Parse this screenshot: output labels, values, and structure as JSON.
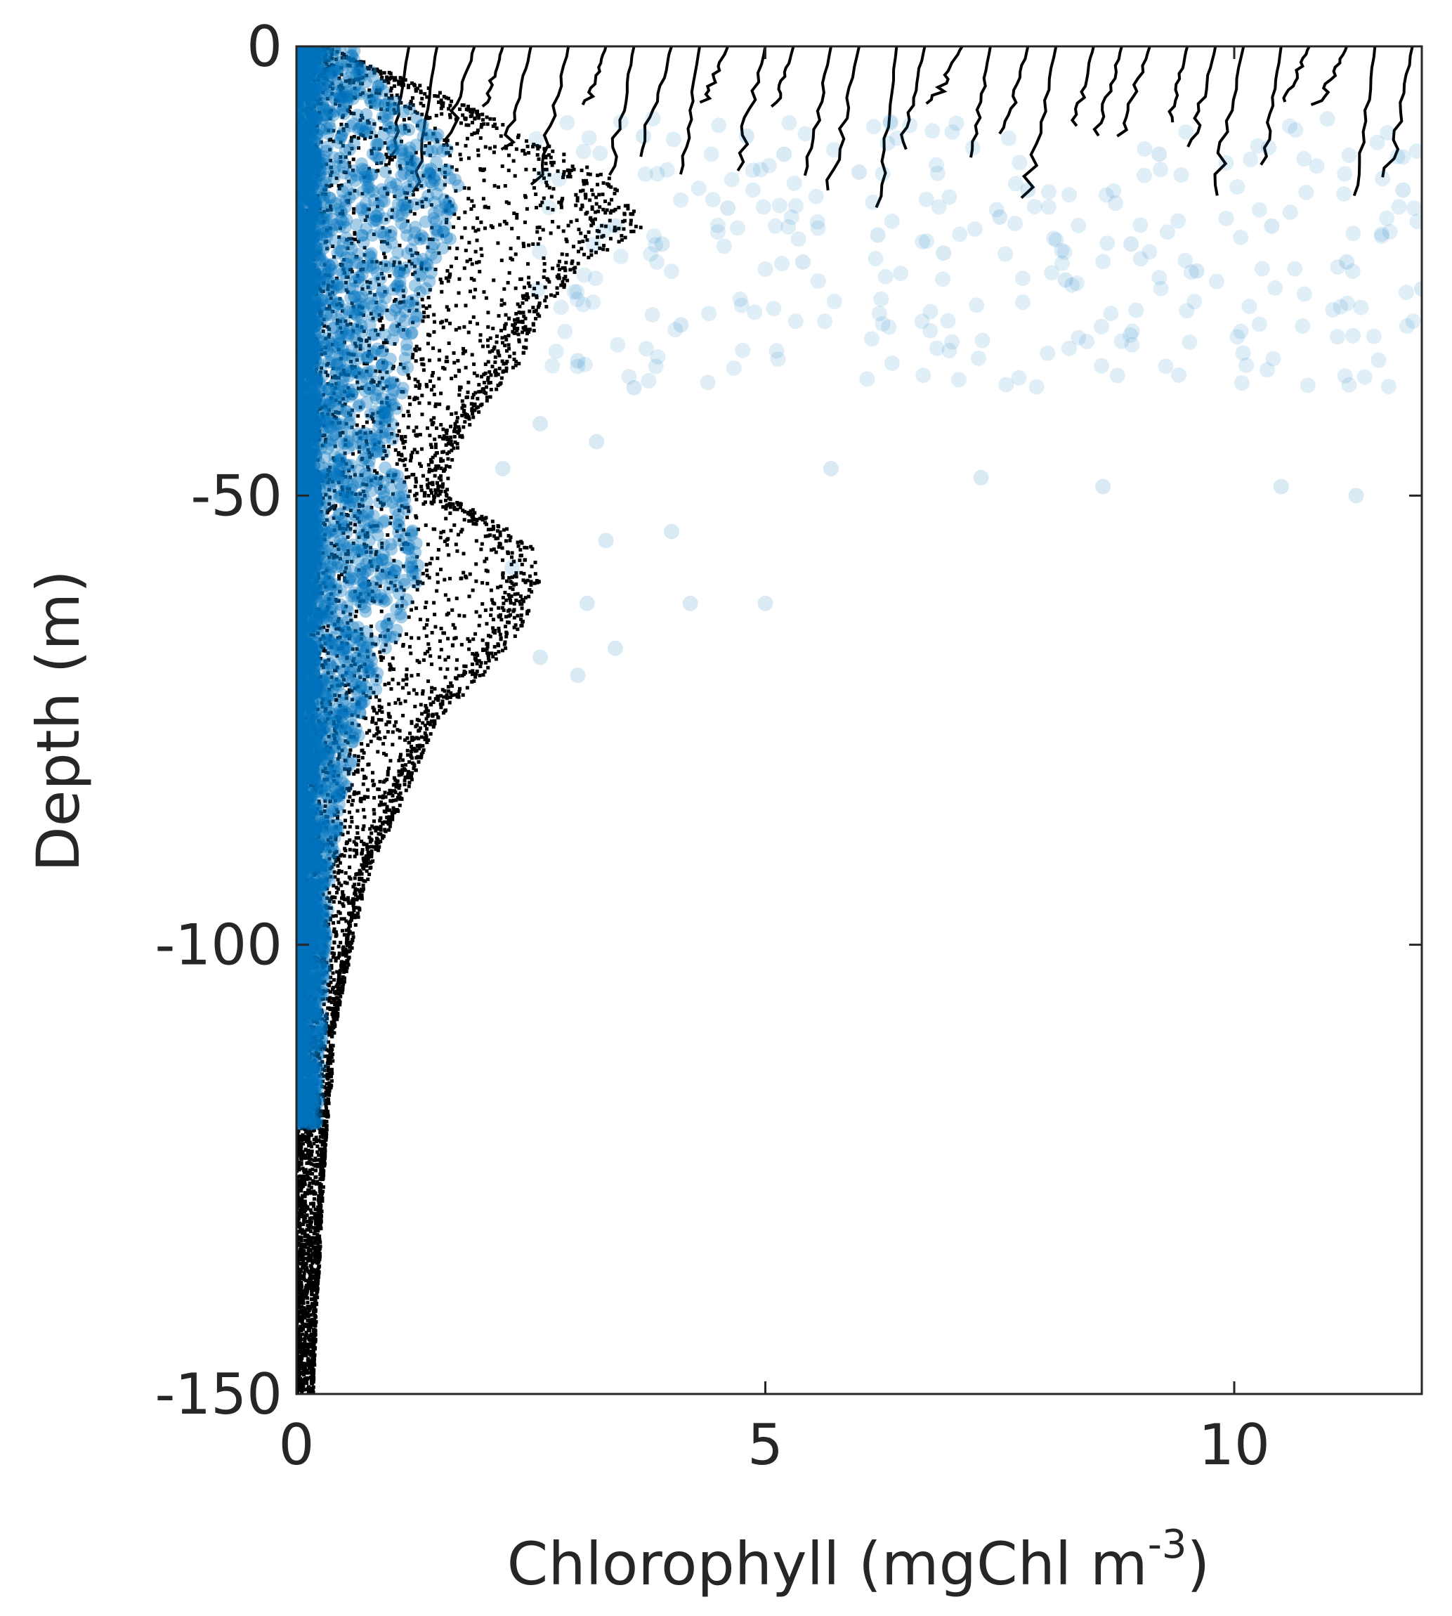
{
  "chart_data": {
    "type": "scatter",
    "xlabel": "Chlorophyll (mgChl m",
    "xlabel_superscript": "-3",
    "xlabel_close": ")",
    "ylabel": "Depth (m)",
    "xlim": [
      0,
      12
    ],
    "ylim": [
      -150,
      0
    ],
    "x_ticks": [
      0,
      5,
      10
    ],
    "y_ticks": [
      0,
      -50,
      -100,
      -150
    ],
    "x_tick_labels": [
      "0",
      "5",
      "10"
    ],
    "y_tick_labels": [
      "0",
      "-50",
      "-100",
      "-150"
    ],
    "grid": false,
    "legend": "none",
    "colors": {
      "modeled": "#000000",
      "observed": "#0072BD",
      "axis": "#262626"
    },
    "series": [
      {
        "marker": "black dots",
        "envelope_x_max_at_depth": [
          [
            0,
            0.3
          ],
          [
            -5,
            1.5
          ],
          [
            -10,
            2.5
          ],
          [
            -15,
            3.4
          ],
          [
            -20,
            3.7
          ],
          [
            -25,
            3.0
          ],
          [
            -30,
            2.6
          ],
          [
            -35,
            2.4
          ],
          [
            -40,
            2.0
          ],
          [
            -45,
            1.7
          ],
          [
            -50,
            1.6
          ],
          [
            -55,
            2.5
          ],
          [
            -60,
            2.6
          ],
          [
            -65,
            2.4
          ],
          [
            -70,
            2.0
          ],
          [
            -75,
            1.5
          ],
          [
            -80,
            1.3
          ],
          [
            -85,
            1.1
          ],
          [
            -90,
            0.85
          ],
          [
            -95,
            0.7
          ],
          [
            -100,
            0.6
          ],
          [
            -105,
            0.5
          ],
          [
            -110,
            0.4
          ],
          [
            -115,
            0.38
          ],
          [
            -120,
            0.33
          ],
          [
            -125,
            0.3
          ],
          [
            -130,
            0.27
          ],
          [
            -135,
            0.25
          ],
          [
            -140,
            0.22
          ],
          [
            -145,
            0.2
          ],
          [
            -150,
            0.18
          ]
        ],
        "surface_profiles_x": [
          1.2,
          1.5,
          1.9,
          2.2,
          2.5,
          2.9,
          3.3,
          3.6,
          4.0,
          4.3,
          4.6,
          5.0,
          5.3,
          5.7,
          6.0,
          6.4,
          6.7,
          7.1,
          7.4,
          7.8,
          8.1,
          8.5,
          8.8,
          9.1,
          9.5,
          9.8,
          10.1,
          10.5,
          10.8,
          11.2,
          11.5,
          11.9
        ]
      },
      {
        "marker": "blue circles (translucent)",
        "envelope_x_max_at_depth": [
          [
            0,
            0.6
          ],
          [
            -5,
            1.0
          ],
          [
            -10,
            1.6
          ],
          [
            -15,
            1.8
          ],
          [
            -20,
            1.7
          ],
          [
            -25,
            1.5
          ],
          [
            -30,
            1.3
          ],
          [
            -35,
            1.2
          ],
          [
            -40,
            1.1
          ],
          [
            -45,
            1.0
          ],
          [
            -50,
            1.2
          ],
          [
            -55,
            1.3
          ],
          [
            -60,
            1.3
          ],
          [
            -65,
            1.1
          ],
          [
            -70,
            0.9
          ],
          [
            -75,
            0.75
          ],
          [
            -80,
            0.6
          ],
          [
            -85,
            0.5
          ],
          [
            -90,
            0.4
          ],
          [
            -95,
            0.35
          ],
          [
            -100,
            0.32
          ],
          [
            -105,
            0.3
          ],
          [
            -110,
            0.28
          ],
          [
            -115,
            0.26
          ],
          [
            -120,
            0.22
          ]
        ],
        "outliers": [
          [
            3.4,
            -20
          ],
          [
            3.9,
            -22
          ],
          [
            4.6,
            -18
          ],
          [
            5.4,
            -24
          ],
          [
            6.2,
            -21
          ],
          [
            6.9,
            -23
          ],
          [
            7.5,
            -19
          ],
          [
            8.2,
            -26
          ],
          [
            8.9,
            -22
          ],
          [
            9.6,
            -25
          ],
          [
            10.4,
            -20
          ],
          [
            11.2,
            -24
          ],
          [
            12.0,
            -27
          ],
          [
            3.0,
            -35
          ],
          [
            3.6,
            -38
          ],
          [
            4.1,
            -31
          ],
          [
            2.6,
            -42
          ],
          [
            3.2,
            -44
          ],
          [
            2.2,
            -47
          ],
          [
            5.7,
            -47
          ],
          [
            7.3,
            -48
          ],
          [
            8.6,
            -49
          ],
          [
            10.5,
            -49
          ],
          [
            11.3,
            -50
          ],
          [
            3.3,
            -55
          ],
          [
            4.0,
            -54
          ],
          [
            2.3,
            -58
          ],
          [
            3.1,
            -62
          ],
          [
            4.2,
            -62
          ],
          [
            5.0,
            -62
          ],
          [
            3.4,
            -67
          ],
          [
            3.0,
            -70
          ],
          [
            2.6,
            -68
          ],
          [
            6.0,
            -14
          ],
          [
            7.8,
            -16
          ],
          [
            9.2,
            -12
          ],
          [
            11.8,
            -16
          ],
          [
            4.8,
            -10
          ],
          [
            5.2,
            -12
          ],
          [
            3.7,
            -10
          ]
        ]
      }
    ]
  }
}
